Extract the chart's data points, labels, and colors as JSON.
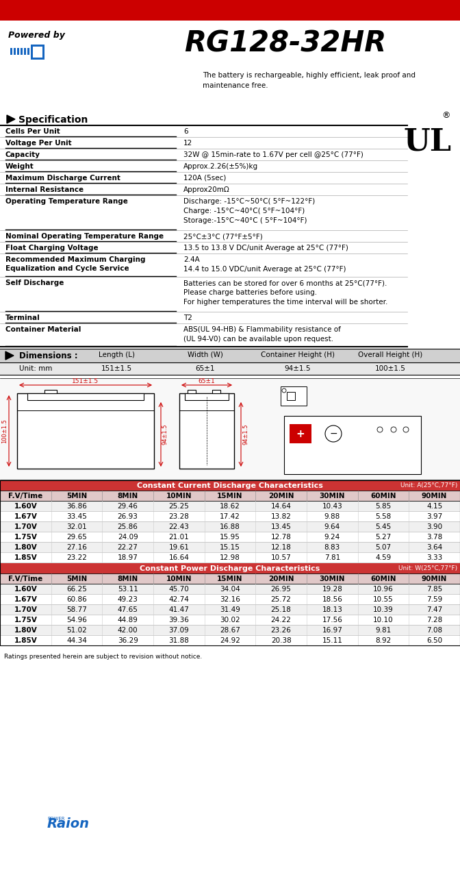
{
  "title": "RG128-32HR",
  "powered_by": "Powered by",
  "subtitle": "The battery is rechargeable, highly efficient, leak proof and\nmaintenance free.",
  "spec_header": "Specification",
  "spec_rows": [
    [
      "Cells Per Unit",
      "6",
      1
    ],
    [
      "Voltage Per Unit",
      "12",
      1
    ],
    [
      "Capacity",
      "32W @ 15min-rate to 1.67V per cell @25°C (77°F)",
      1
    ],
    [
      "Weight",
      "Approx.2.26(±5%)kg",
      1
    ],
    [
      "Maximum Discharge Current",
      "120A (5sec)",
      1
    ],
    [
      "Internal Resistance",
      "Approx20mΩ",
      1
    ],
    [
      "Operating Temperature Range",
      "Discharge: -15°C~50°C( 5°F~122°F)\nCharge: -15°C~40°C( 5°F~104°F)\nStorage:-15°C~40°C ( 5°F~104°F)",
      3
    ],
    [
      "Nominal Operating Temperature Range",
      "25°C±3°C (77°F±5°F)",
      1
    ],
    [
      "Float Charging Voltage",
      "13.5 to 13.8 V DC/unit Average at 25°C (77°F)",
      1
    ],
    [
      "Recommended Maximum Charging\nEqualization and Cycle Service",
      "2.4A\n14.4 to 15.0 VDC/unit Average at 25°C (77°F)",
      2
    ],
    [
      "Self Discharge",
      "Batteries can be stored for over 6 months at 25°C(77°F).\nPlease charge batteries before using.\nFor higher temperatures the time interval will be shorter.",
      3
    ],
    [
      "Terminal",
      "T2",
      1
    ],
    [
      "Container Material",
      "ABS(UL 94-HB) & Flammability resistance of\n(UL 94-V0) can be available upon request.",
      2
    ]
  ],
  "dim_headers": [
    "Dimensions :",
    "Length (L)",
    "Width (W)",
    "Container Height (H)",
    "Overall Height (H)"
  ],
  "dim_values": [
    "Unit: mm",
    "151±1.5",
    "65±1",
    "94±1.5",
    "100±1.5"
  ],
  "cc_table_title": "Constant Current Discharge Characteristics",
  "cc_table_unit": "Unit: A(25°C,77°F)",
  "cc_headers": [
    "F.V/Time",
    "5MIN",
    "8MIN",
    "10MIN",
    "15MIN",
    "20MIN",
    "30MIN",
    "60MIN",
    "90MIN"
  ],
  "cc_data": [
    [
      "1.60V",
      "36.86",
      "29.46",
      "25.25",
      "18.62",
      "14.64",
      "10.43",
      "5.85",
      "4.15"
    ],
    [
      "1.67V",
      "33.45",
      "26.93",
      "23.28",
      "17.42",
      "13.82",
      "9.88",
      "5.58",
      "3.97"
    ],
    [
      "1.70V",
      "32.01",
      "25.86",
      "22.43",
      "16.88",
      "13.45",
      "9.64",
      "5.45",
      "3.90"
    ],
    [
      "1.75V",
      "29.65",
      "24.09",
      "21.01",
      "15.95",
      "12.78",
      "9.24",
      "5.27",
      "3.78"
    ],
    [
      "1.80V",
      "27.16",
      "22.27",
      "19.61",
      "15.15",
      "12.18",
      "8.83",
      "5.07",
      "3.64"
    ],
    [
      "1.85V",
      "23.22",
      "18.97",
      "16.64",
      "12.98",
      "10.57",
      "7.81",
      "4.59",
      "3.33"
    ]
  ],
  "cp_table_title": "Constant Power Discharge Characteristics",
  "cp_table_unit": "Unit: W(25°C,77°F)",
  "cp_headers": [
    "F.V/Time",
    "5MIN",
    "8MIN",
    "10MIN",
    "15MIN",
    "20MIN",
    "30MIN",
    "60MIN",
    "90MIN"
  ],
  "cp_data": [
    [
      "1.60V",
      "66.25",
      "53.11",
      "45.70",
      "34.04",
      "26.95",
      "19.28",
      "10.96",
      "7.85"
    ],
    [
      "1.67V",
      "60.86",
      "49.23",
      "42.74",
      "32.16",
      "25.72",
      "18.56",
      "10.55",
      "7.59"
    ],
    [
      "1.70V",
      "58.77",
      "47.65",
      "41.47",
      "31.49",
      "25.18",
      "18.13",
      "10.39",
      "7.47"
    ],
    [
      "1.75V",
      "54.96",
      "44.89",
      "39.36",
      "30.02",
      "24.22",
      "17.56",
      "10.10",
      "7.28"
    ],
    [
      "1.80V",
      "51.02",
      "42.00",
      "37.09",
      "28.67",
      "23.26",
      "16.97",
      "9.81",
      "7.08"
    ],
    [
      "1.85V",
      "44.34",
      "36.29",
      "31.88",
      "24.92",
      "20.38",
      "15.11",
      "8.92",
      "6.50"
    ]
  ],
  "footer": "Ratings presented herein are subject to revision without notice.",
  "red_bar_color": "#cc0000",
  "table_red": "#cc3333",
  "dim_bg": "#d0d0d0",
  "dim_val_bg": "#e8e8e8",
  "col_header_bg": "#e0c8c8"
}
